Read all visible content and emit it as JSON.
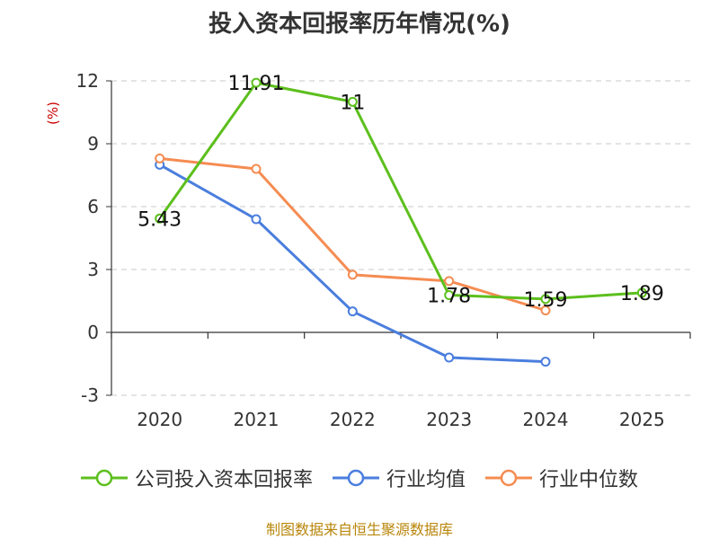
{
  "colors": {
    "title": "#333333",
    "unit": "#cc0000",
    "source": "#b8860b",
    "grid": "#c8c8c8",
    "axis": "#333333"
  },
  "chart_data": {
    "type": "line",
    "title": "投入资本回报率历年情况(%)",
    "unit_label": "(%)",
    "x": [
      "2020",
      "2021",
      "2022",
      "2023",
      "2024",
      "2025"
    ],
    "ylim": [
      -3,
      12
    ],
    "yticks": [
      -3,
      0,
      3,
      6,
      9,
      12
    ],
    "grid": true,
    "legend_position": "bottom",
    "series": [
      {
        "name": "公司投入资本回报率",
        "color": "#5cbf1d",
        "values": [
          5.43,
          11.91,
          11,
          1.78,
          1.59,
          1.89
        ],
        "labels": [
          "5.43",
          "11.91",
          "11",
          "1.78",
          "1.59",
          "1.89"
        ]
      },
      {
        "name": "行业均值",
        "color": "#4a7ede",
        "values": [
          8.0,
          5.4,
          1.0,
          -1.2,
          -1.4,
          null
        ]
      },
      {
        "name": "行业中位数",
        "color": "#f58c52",
        "values": [
          8.3,
          7.8,
          2.75,
          2.45,
          1.05,
          null
        ]
      }
    ],
    "source": "制图数据来自恒生聚源数据库"
  }
}
